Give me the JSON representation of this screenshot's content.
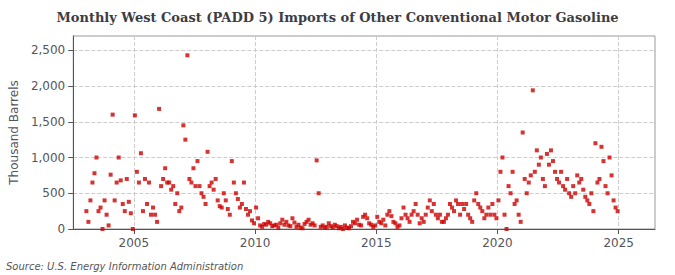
{
  "chart_data": {
    "type": "scatter",
    "title": "Monthly West Coast (PADD 5) Imports of Other Conventional Motor Gasoline",
    "ylabel": "Thousand Barrels",
    "annotations": [
      "Source: U.S. Energy Information Administration"
    ],
    "color": "#cc0000",
    "marker": "square",
    "grid": true,
    "xlim": [
      2002.5,
      2026.5
    ],
    "xticks": [
      2005,
      2010,
      2015,
      2020,
      2025
    ],
    "ylim": [
      0,
      2700
    ],
    "yticks": [
      0,
      500,
      {
        "value": 1000,
        "label": "1,000"
      },
      {
        "value": 1500,
        "label": "1,500"
      },
      {
        "value": 2000,
        "label": "2,000"
      },
      {
        "value": 2500,
        "label": "2,500"
      }
    ],
    "x": [
      2003.0416666666667,
      2003.125,
      2003.2083333333333,
      2003.2916666666667,
      2003.375,
      2003.4583333333333,
      2003.5416666666667,
      2003.625,
      2003.7083333333333,
      2003.7916666666667,
      2003.875,
      2003.9583333333333,
      2004.0416666666667,
      2004.125,
      2004.2083333333333,
      2004.2916666666667,
      2004.375,
      2004.4583333333333,
      2004.5416666666667,
      2004.625,
      2004.7083333333333,
      2004.7916666666667,
      2004.875,
      2004.9583333333333,
      2005.0416666666667,
      2005.125,
      2005.2083333333333,
      2005.2916666666667,
      2005.375,
      2005.4583333333333,
      2005.5416666666667,
      2005.625,
      2005.7083333333333,
      2005.7916666666667,
      2005.875,
      2005.9583333333333,
      2006.0416666666667,
      2006.125,
      2006.2083333333333,
      2006.2916666666667,
      2006.375,
      2006.4583333333333,
      2006.5416666666667,
      2006.625,
      2006.7083333333333,
      2006.7916666666667,
      2006.875,
      2006.9583333333333,
      2007.0416666666667,
      2007.125,
      2007.2083333333333,
      2007.2916666666667,
      2007.375,
      2007.4583333333333,
      2007.5416666666667,
      2007.625,
      2007.7083333333333,
      2007.7916666666667,
      2007.875,
      2007.9583333333333,
      2008.0416666666667,
      2008.125,
      2008.2083333333333,
      2008.2916666666667,
      2008.375,
      2008.4583333333333,
      2008.5416666666667,
      2008.625,
      2008.7083333333333,
      2008.7916666666667,
      2008.875,
      2008.9583333333333,
      2009.0416666666667,
      2009.125,
      2009.2083333333333,
      2009.2916666666667,
      2009.375,
      2009.4583333333333,
      2009.5416666666667,
      2009.625,
      2009.7083333333333,
      2009.7916666666667,
      2009.875,
      2009.9583333333333,
      2010.0416666666667,
      2010.125,
      2010.2083333333333,
      2010.2916666666667,
      2010.375,
      2010.4583333333333,
      2010.5416666666667,
      2010.625,
      2010.7083333333333,
      2010.7916666666667,
      2010.875,
      2010.9583333333333,
      2011.0416666666667,
      2011.125,
      2011.2083333333333,
      2011.2916666666667,
      2011.375,
      2011.4583333333333,
      2011.5416666666667,
      2011.625,
      2011.7083333333333,
      2011.7916666666667,
      2011.875,
      2011.9583333333333,
      2012.0416666666667,
      2012.125,
      2012.2083333333333,
      2012.2916666666667,
      2012.375,
      2012.4583333333333,
      2012.5416666666667,
      2012.625,
      2012.7083333333333,
      2012.7916666666667,
      2012.875,
      2012.9583333333333,
      2013.0416666666667,
      2013.125,
      2013.2083333333333,
      2013.2916666666667,
      2013.375,
      2013.4583333333333,
      2013.5416666666667,
      2013.625,
      2013.7083333333333,
      2013.7916666666667,
      2013.875,
      2013.9583333333333,
      2014.0416666666667,
      2014.125,
      2014.2083333333333,
      2014.2916666666667,
      2014.375,
      2014.4583333333333,
      2014.5416666666667,
      2014.625,
      2014.7083333333333,
      2014.7916666666667,
      2014.875,
      2014.9583333333333,
      2015.0416666666667,
      2015.125,
      2015.2083333333333,
      2015.2916666666667,
      2015.375,
      2015.4583333333333,
      2015.5416666666667,
      2015.625,
      2015.7083333333333,
      2015.7916666666667,
      2015.875,
      2015.9583333333333,
      2016.0416666666667,
      2016.125,
      2016.2083333333333,
      2016.2916666666667,
      2016.375,
      2016.4583333333333,
      2016.5416666666667,
      2016.625,
      2016.7083333333333,
      2016.7916666666667,
      2016.875,
      2016.9583333333333,
      2017.0416666666667,
      2017.125,
      2017.2083333333333,
      2017.2916666666667,
      2017.375,
      2017.4583333333333,
      2017.5416666666667,
      2017.625,
      2017.7083333333333,
      2017.7916666666667,
      2017.875,
      2017.9583333333333,
      2018.0416666666667,
      2018.125,
      2018.2083333333333,
      2018.2916666666667,
      2018.375,
      2018.4583333333333,
      2018.5416666666667,
      2018.625,
      2018.7083333333333,
      2018.7916666666667,
      2018.875,
      2018.9583333333333,
      2019.0416666666667,
      2019.125,
      2019.2083333333333,
      2019.2916666666667,
      2019.375,
      2019.4583333333333,
      2019.5416666666667,
      2019.625,
      2019.7083333333333,
      2019.7916666666667,
      2019.875,
      2019.9583333333333,
      2020.0416666666667,
      2020.125,
      2020.2083333333333,
      2020.2916666666667,
      2020.375,
      2020.4583333333333,
      2020.5416666666667,
      2020.625,
      2020.7083333333333,
      2020.7916666666667,
      2020.875,
      2020.9583333333333,
      2021.0416666666667,
      2021.125,
      2021.2083333333333,
      2021.2916666666667,
      2021.375,
      2021.4583333333333,
      2021.5416666666667,
      2021.625,
      2021.7083333333333,
      2021.7916666666667,
      2021.875,
      2021.9583333333333,
      2022.0416666666667,
      2022.125,
      2022.2083333333333,
      2022.2916666666667,
      2022.375,
      2022.4583333333333,
      2022.5416666666667,
      2022.625,
      2022.7083333333333,
      2022.7916666666667,
      2022.875,
      2022.9583333333333,
      2023.0416666666667,
      2023.125,
      2023.2083333333333,
      2023.2916666666667,
      2023.375,
      2023.4583333333333,
      2023.5416666666667,
      2023.625,
      2023.7083333333333,
      2023.7916666666667,
      2023.875,
      2023.9583333333333,
      2024.0416666666667,
      2024.125,
      2024.2083333333333,
      2024.2916666666667,
      2024.375,
      2024.4583333333333,
      2024.5416666666667,
      2024.625,
      2024.7083333333333,
      2024.7916666666667,
      2024.875,
      2024.9583333333333
    ],
    "values": [
      250,
      100,
      400,
      650,
      780,
      1000,
      250,
      300,
      0,
      400,
      200,
      50,
      760,
      1600,
      400,
      650,
      1000,
      680,
      350,
      250,
      700,
      380,
      220,
      0,
      1590,
      800,
      650,
      1060,
      250,
      700,
      350,
      650,
      200,
      300,
      200,
      100,
      1680,
      600,
      700,
      850,
      650,
      650,
      550,
      600,
      350,
      500,
      250,
      300,
      1450,
      1250,
      2430,
      700,
      650,
      850,
      600,
      950,
      600,
      500,
      450,
      350,
      1080,
      600,
      650,
      550,
      700,
      400,
      320,
      300,
      500,
      400,
      280,
      200,
      950,
      650,
      500,
      420,
      300,
      350,
      650,
      280,
      200,
      250,
      120,
      80,
      300,
      150,
      50,
      30,
      70,
      60,
      100,
      80,
      40,
      50,
      60,
      20,
      80,
      130,
      60,
      100,
      50,
      40,
      150,
      90,
      30,
      60,
      20,
      10,
      70,
      100,
      130,
      60,
      80,
      50,
      960,
      500,
      30,
      50,
      20,
      30,
      80,
      40,
      20,
      60,
      40,
      10,
      30,
      0,
      50,
      20,
      10,
      40,
      100,
      80,
      130,
      60,
      50,
      170,
      200,
      150,
      80,
      60,
      30,
      50,
      170,
      100,
      80,
      130,
      50,
      200,
      250,
      180,
      100,
      80,
      30,
      50,
      150,
      300,
      200,
      150,
      100,
      200,
      250,
      350,
      200,
      80,
      150,
      100,
      200,
      300,
      400,
      250,
      350,
      200,
      150,
      200,
      100,
      100,
      150,
      200,
      350,
      300,
      250,
      400,
      350,
      200,
      350,
      280,
      350,
      200,
      150,
      100,
      400,
      500,
      350,
      300,
      250,
      150,
      200,
      300,
      200,
      350,
      200,
      150,
      400,
      800,
      1000,
      200,
      0,
      600,
      500,
      800,
      350,
      400,
      200,
      100,
      1350,
      700,
      500,
      650,
      750,
      1940,
      800,
      1100,
      900,
      1000,
      700,
      600,
      1050,
      900,
      1100,
      950,
      800,
      700,
      650,
      800,
      600,
      550,
      700,
      500,
      450,
      600,
      500,
      750,
      650,
      700,
      550,
      450,
      400,
      350,
      500,
      250,
      1200,
      650,
      700,
      1150,
      950,
      600,
      500,
      1000,
      750,
      400,
      300,
      250
    ]
  }
}
